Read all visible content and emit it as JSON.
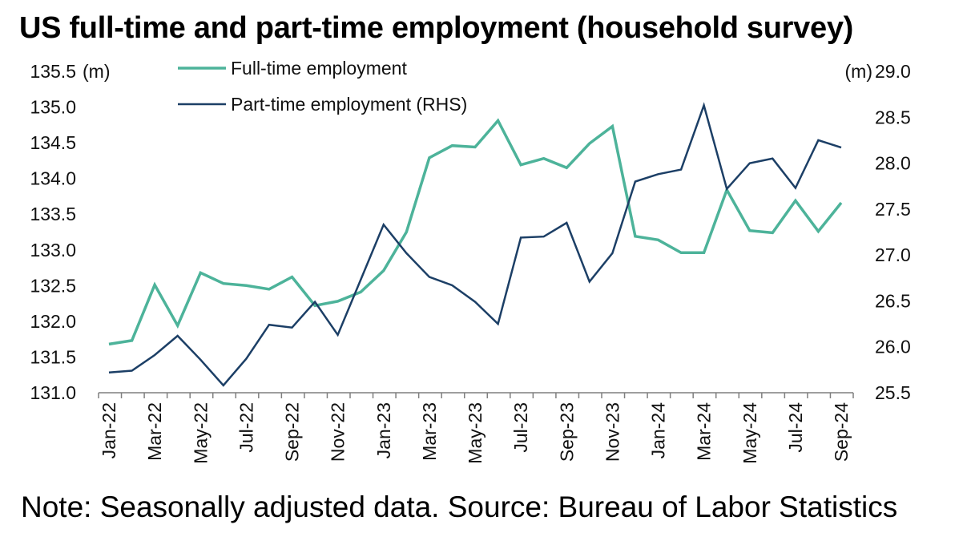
{
  "title": "US full-time and part-time employment (household survey)",
  "note": "Note: Seasonally adjusted data. Source: Bureau of Labor Statistics",
  "chart_data": {
    "type": "line",
    "left_axis": {
      "unit": "(m)",
      "min": 131.0,
      "max": 135.5,
      "ticks": [
        "131.0",
        "131.5",
        "132.0",
        "132.5",
        "133.0",
        "133.5",
        "134.0",
        "134.5",
        "135.0",
        "135.5"
      ]
    },
    "right_axis": {
      "unit": "(m)",
      "min": 25.5,
      "max": 29.0,
      "ticks": [
        "25.5",
        "26.0",
        "26.5",
        "27.0",
        "27.5",
        "28.0",
        "28.5",
        "29.0"
      ]
    },
    "categories": [
      "Jan-22",
      "Feb-22",
      "Mar-22",
      "Apr-22",
      "May-22",
      "Jun-22",
      "Jul-22",
      "Aug-22",
      "Sep-22",
      "Oct-22",
      "Nov-22",
      "Dec-22",
      "Jan-23",
      "Feb-23",
      "Mar-23",
      "Apr-23",
      "May-23",
      "Jun-23",
      "Jul-23",
      "Aug-23",
      "Sep-23",
      "Oct-23",
      "Nov-23",
      "Dec-23",
      "Jan-24",
      "Feb-24",
      "Mar-24",
      "Apr-24",
      "May-24",
      "Jun-24",
      "Jul-24",
      "Aug-24",
      "Sep-24"
    ],
    "x_tick_labels": [
      "Jan-22",
      "",
      "Mar-22",
      "",
      "May-22",
      "",
      "Jul-22",
      "",
      "Sep-22",
      "",
      "Nov-22",
      "",
      "Jan-23",
      "",
      "Mar-23",
      "",
      "May-23",
      "",
      "Jul-23",
      "",
      "Sep-23",
      "",
      "Nov-23",
      "",
      "Jan-24",
      "",
      "Mar-24",
      "",
      "May-24",
      "",
      "Jul-24",
      "",
      "Sep-24"
    ],
    "series": [
      {
        "name": "Full-time employment",
        "axis": "left",
        "color": "#4db39a",
        "values": [
          131.68,
          131.73,
          132.51,
          131.94,
          132.68,
          132.53,
          132.5,
          132.45,
          132.62,
          132.22,
          132.28,
          132.41,
          132.71,
          133.25,
          134.29,
          134.46,
          134.44,
          134.81,
          134.19,
          134.28,
          134.15,
          134.49,
          134.73,
          133.19,
          133.14,
          132.96,
          132.96,
          133.84,
          133.27,
          133.24,
          133.69,
          133.26,
          133.66
        ]
      },
      {
        "name": "Part-time employment (RHS)",
        "axis": "right",
        "color": "#1c3f66",
        "values": [
          25.72,
          25.74,
          25.91,
          26.12,
          25.86,
          25.58,
          25.87,
          26.24,
          26.21,
          26.49,
          26.13,
          26.73,
          27.33,
          27.02,
          26.76,
          26.67,
          26.49,
          26.25,
          27.19,
          27.2,
          27.35,
          26.71,
          27.02,
          27.8,
          27.88,
          27.93,
          28.63,
          27.72,
          28.0,
          28.05,
          27.73,
          28.25,
          28.17
        ]
      }
    ],
    "legend_position": "top-center",
    "grid": false
  }
}
